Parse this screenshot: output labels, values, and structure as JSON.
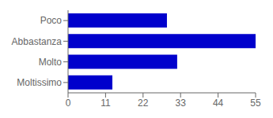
{
  "chart_data": {
    "type": "bar",
    "orientation": "horizontal",
    "categories": [
      "Poco",
      "Abbastanza",
      "Molto",
      "Moltissimo"
    ],
    "values": [
      29,
      55,
      32,
      13
    ],
    "color": "#0000cc",
    "xlim": [
      0,
      55
    ],
    "xticks": [
      0,
      11,
      22,
      33,
      44,
      55
    ],
    "grid": false
  }
}
